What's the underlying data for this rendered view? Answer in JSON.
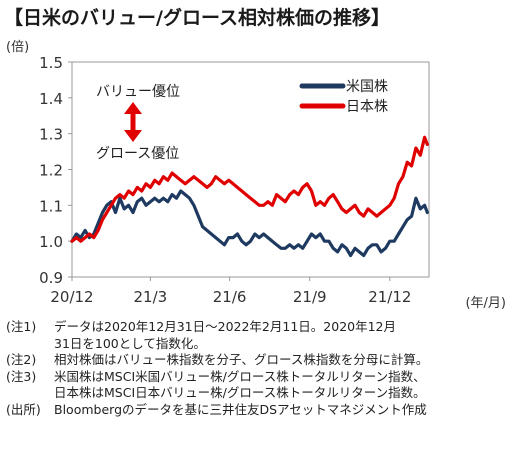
{
  "title": "【日米のバリュー/グロース相対株価の推移】",
  "chart_data": {
    "type": "line",
    "ylabel": "(倍)",
    "xlabel": "(年/月)",
    "ylim": [
      0.9,
      1.5
    ],
    "yticks": [
      "0.9",
      "1.0",
      "1.1",
      "1.2",
      "1.3",
      "1.4",
      "1.5"
    ],
    "xlim": [
      0,
      410
    ],
    "xticks": [
      {
        "label": "20/12",
        "x": 0
      },
      {
        "label": "21/3",
        "x": 90
      },
      {
        "label": "21/6",
        "x": 181
      },
      {
        "label": "21/9",
        "x": 273
      },
      {
        "label": "21/12",
        "x": 365
      }
    ],
    "grid": false,
    "legend_position": "top-right",
    "annotation": {
      "top": "バリュー優位",
      "bottom": "グロース優位",
      "arrow_color": "#e00000"
    },
    "series": [
      {
        "name": "米国株",
        "color": "#1f3a60",
        "x": [
          0,
          5,
          10,
          15,
          20,
          25,
          30,
          35,
          40,
          45,
          50,
          55,
          60,
          65,
          70,
          75,
          80,
          85,
          90,
          95,
          100,
          105,
          110,
          115,
          120,
          125,
          130,
          135,
          140,
          145,
          150,
          155,
          160,
          165,
          170,
          175,
          180,
          185,
          190,
          195,
          200,
          205,
          210,
          215,
          220,
          225,
          230,
          235,
          240,
          245,
          250,
          255,
          260,
          265,
          270,
          275,
          280,
          285,
          290,
          295,
          300,
          305,
          310,
          315,
          320,
          325,
          330,
          335,
          340,
          345,
          350,
          355,
          360,
          365,
          370,
          375,
          380,
          385,
          390,
          395,
          400,
          405,
          408
        ],
        "values": [
          1.0,
          1.02,
          1.01,
          1.03,
          1.01,
          1.02,
          1.05,
          1.08,
          1.1,
          1.11,
          1.08,
          1.12,
          1.09,
          1.1,
          1.08,
          1.11,
          1.12,
          1.1,
          1.11,
          1.12,
          1.11,
          1.12,
          1.11,
          1.13,
          1.12,
          1.14,
          1.13,
          1.12,
          1.1,
          1.07,
          1.04,
          1.03,
          1.02,
          1.01,
          1.0,
          0.99,
          1.01,
          1.01,
          1.02,
          1.0,
          0.99,
          1.0,
          1.02,
          1.01,
          1.02,
          1.01,
          1.0,
          0.99,
          0.98,
          0.98,
          0.99,
          0.98,
          0.99,
          0.98,
          1.0,
          1.02,
          1.01,
          1.02,
          1.0,
          1.0,
          0.98,
          0.97,
          0.99,
          0.98,
          0.96,
          0.98,
          0.97,
          0.96,
          0.98,
          0.99,
          0.99,
          0.97,
          0.98,
          1.0,
          1.0,
          1.02,
          1.04,
          1.06,
          1.07,
          1.12,
          1.09,
          1.1,
          1.08
        ]
      },
      {
        "name": "日本株",
        "color": "#e00000",
        "x": [
          0,
          5,
          10,
          15,
          20,
          25,
          30,
          35,
          40,
          45,
          50,
          55,
          60,
          65,
          70,
          75,
          80,
          85,
          90,
          95,
          100,
          105,
          110,
          115,
          120,
          125,
          130,
          135,
          140,
          145,
          150,
          155,
          160,
          165,
          170,
          175,
          180,
          185,
          190,
          195,
          200,
          205,
          210,
          215,
          220,
          225,
          230,
          235,
          240,
          245,
          250,
          255,
          260,
          265,
          270,
          275,
          280,
          285,
          290,
          295,
          300,
          305,
          310,
          315,
          320,
          325,
          330,
          335,
          340,
          345,
          350,
          355,
          360,
          365,
          370,
          375,
          380,
          385,
          390,
          395,
          400,
          405,
          408
        ],
        "values": [
          1.0,
          1.01,
          1.0,
          1.01,
          1.02,
          1.01,
          1.03,
          1.06,
          1.08,
          1.1,
          1.12,
          1.13,
          1.12,
          1.14,
          1.13,
          1.15,
          1.14,
          1.16,
          1.15,
          1.17,
          1.16,
          1.18,
          1.17,
          1.19,
          1.18,
          1.17,
          1.16,
          1.17,
          1.18,
          1.17,
          1.16,
          1.15,
          1.16,
          1.18,
          1.17,
          1.16,
          1.17,
          1.16,
          1.15,
          1.14,
          1.13,
          1.12,
          1.11,
          1.1,
          1.1,
          1.11,
          1.1,
          1.13,
          1.12,
          1.11,
          1.13,
          1.14,
          1.13,
          1.15,
          1.16,
          1.14,
          1.1,
          1.11,
          1.1,
          1.12,
          1.13,
          1.11,
          1.09,
          1.08,
          1.09,
          1.1,
          1.08,
          1.07,
          1.09,
          1.08,
          1.07,
          1.08,
          1.09,
          1.1,
          1.12,
          1.16,
          1.18,
          1.22,
          1.21,
          1.26,
          1.24,
          1.29,
          1.27
        ]
      }
    ]
  },
  "notes": [
    {
      "label": "(注1)",
      "lines": [
        "データは2020年12月31日～2022年2月11日。2020年12月",
        "31日を100として指数化。"
      ]
    },
    {
      "label": "(注2)",
      "lines": [
        "相対株価はバリュー株指数を分子、グロース株指数を分母に計算。"
      ]
    },
    {
      "label": "(注3)",
      "lines": [
        "米国株はMSCI米国バリュー株/グロース株トータルリターン指数、",
        "日本株はMSCI日本バリュー株/グロース株トータルリターン指数。"
      ]
    },
    {
      "label": "(出所)",
      "lines": [
        "Bloombergのデータを基に三井住友DSアセットマネジメント作成"
      ]
    }
  ]
}
